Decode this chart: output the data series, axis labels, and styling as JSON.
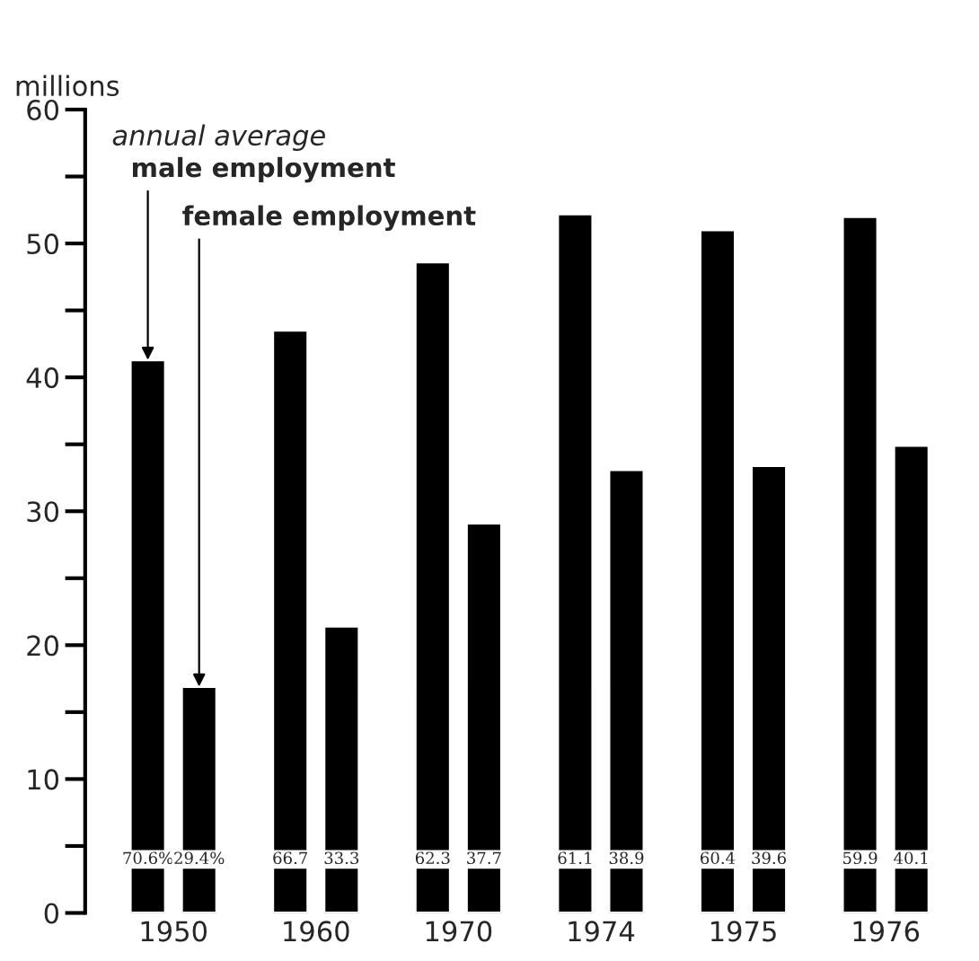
{
  "chart_data": {
    "type": "bar",
    "ylabel": "millions",
    "subtitle": "annual average",
    "categories": [
      "1950",
      "1960",
      "1970",
      "1974",
      "1975",
      "1976"
    ],
    "series": [
      {
        "name": "male employment",
        "color": "#000000",
        "values": [
          41.3,
          43.5,
          48.6,
          52.2,
          51.0,
          52.0
        ]
      },
      {
        "name": "female employment",
        "color": "#000000",
        "values": [
          16.9,
          21.4,
          29.1,
          33.1,
          33.4,
          34.9
        ]
      }
    ],
    "annotations": [
      "70.6%",
      "29.4%",
      "66.7",
      "33.3",
      "62.3",
      "37.7",
      "61.1",
      "38.9",
      "60.4",
      "39.6",
      "59.9",
      "40.1"
    ],
    "ylim": [
      0,
      60
    ],
    "yticks": [
      0,
      {
        "value": 5,
        "label": null
      },
      10,
      {
        "value": 15,
        "label": null
      },
      20,
      {
        "value": 25,
        "label": null
      },
      30,
      {
        "value": 35,
        "label": null
      },
      40,
      {
        "value": 45,
        "label": null
      },
      50,
      {
        "value": 55,
        "label": null
      },
      60
    ],
    "grid": false,
    "legend": "top left"
  }
}
